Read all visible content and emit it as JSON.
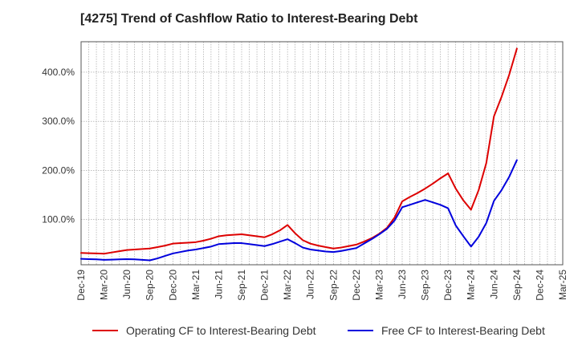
{
  "chart_data": {
    "type": "line",
    "title": "[4275]  Trend of Cashflow Ratio to Interest-Bearing Debt",
    "xlabel": "",
    "ylabel": "",
    "x": [
      "Dec-19",
      "Jan-20",
      "Feb-20",
      "Mar-20",
      "Apr-20",
      "May-20",
      "Jun-20",
      "Jul-20",
      "Aug-20",
      "Sep-20",
      "Oct-20",
      "Nov-20",
      "Dec-20",
      "Jan-21",
      "Feb-21",
      "Mar-21",
      "Apr-21",
      "May-21",
      "Jun-21",
      "Jul-21",
      "Aug-21",
      "Sep-21",
      "Oct-21",
      "Nov-21",
      "Dec-21",
      "Jan-22",
      "Feb-22",
      "Mar-22",
      "Apr-22",
      "May-22",
      "Jun-22",
      "Jul-22",
      "Aug-22",
      "Sep-22",
      "Oct-22",
      "Nov-22",
      "Dec-22",
      "Jan-23",
      "Feb-23",
      "Mar-23",
      "Apr-23",
      "May-23",
      "Jun-23",
      "Jul-23",
      "Aug-23",
      "Sep-23",
      "Oct-23",
      "Nov-23",
      "Dec-23",
      "Jan-24",
      "Feb-24",
      "Mar-24",
      "Apr-24",
      "May-24",
      "Jun-24",
      "Jul-24",
      "Aug-24",
      "Sep-24",
      "Oct-24",
      "Nov-24",
      "Dec-24",
      "Jan-25",
      "Feb-25",
      "Mar-25"
    ],
    "x_tick_labels": [
      "Dec-19",
      "Mar-20",
      "Jun-20",
      "Sep-20",
      "Dec-20",
      "Mar-21",
      "Jun-21",
      "Sep-21",
      "Dec-21",
      "Mar-22",
      "Jun-22",
      "Sep-22",
      "Dec-22",
      "Mar-23",
      "Jun-23",
      "Sep-23",
      "Dec-23",
      "Mar-24",
      "Jun-24",
      "Sep-24",
      "Dec-24",
      "Mar-25"
    ],
    "y_tick_labels": [
      "100.0%",
      "200.0%",
      "300.0%",
      "400.0%"
    ],
    "y_ticks": [
      100,
      200,
      300,
      400
    ],
    "ylim": [
      8,
      462
    ],
    "grid": true,
    "legend_position": "bottom",
    "series": [
      {
        "name": "Operating CF to Interest-Bearing Debt",
        "color": "#dd0000",
        "values": [
          32,
          31.5,
          31,
          30.5,
          33,
          35.5,
          38,
          39,
          40,
          41,
          44,
          47,
          51,
          52,
          53,
          54,
          57,
          61,
          66,
          68,
          69,
          70,
          68,
          66,
          64,
          70,
          78,
          89,
          72,
          58,
          51,
          47,
          44,
          41,
          43,
          46,
          49,
          55,
          62,
          71,
          83,
          104,
          137,
          146,
          154,
          163,
          173,
          184,
          194,
          163,
          139,
          120,
          160,
          215,
          310,
          350,
          395,
          448,
          null,
          null,
          null,
          null,
          null,
          null
        ]
      },
      {
        "name": "Free CF to Interest-Bearing Debt",
        "color": "#0000dd",
        "values": [
          20,
          19.5,
          19,
          18,
          18.5,
          19,
          19.5,
          19,
          18,
          17,
          21,
          26,
          31,
          34,
          37,
          39,
          42,
          45,
          50,
          51,
          52,
          52,
          50,
          48,
          46,
          50,
          55,
          60,
          52,
          43,
          39,
          37,
          35,
          34,
          36,
          39,
          42,
          51,
          60,
          70,
          81,
          98,
          125,
          130,
          135,
          140,
          135,
          130,
          123,
          88,
          66,
          45,
          65,
          93,
          138,
          160,
          187,
          221,
          null,
          null,
          null,
          null,
          null,
          null
        ]
      }
    ]
  }
}
